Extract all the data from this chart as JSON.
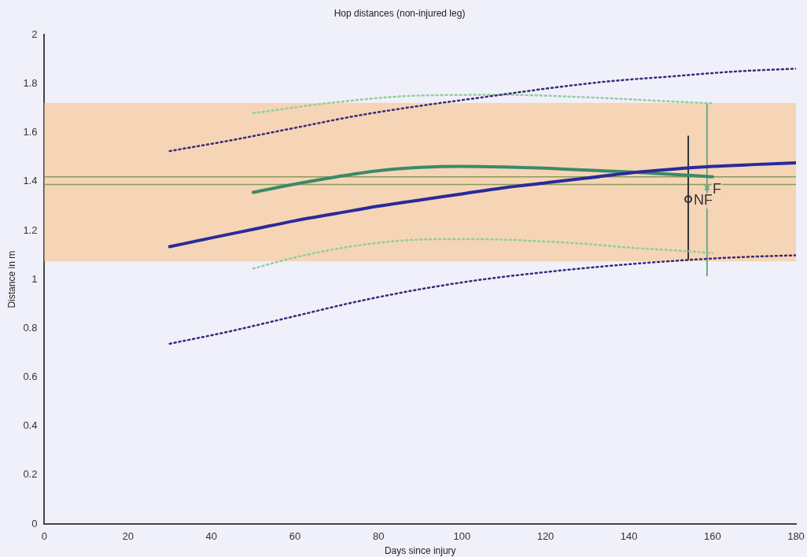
{
  "chart_data": {
    "type": "line",
    "title": "Hop distances (non-injured leg)",
    "xlabel": "Days since injury",
    "ylabel": "Distance in m",
    "xlim": [
      0,
      180
    ],
    "xticks": [
      0,
      20,
      40,
      60,
      80,
      100,
      120,
      140,
      160,
      180
    ],
    "ylim": [
      0,
      2
    ],
    "yticks": [
      0,
      0.2,
      0.4,
      0.6,
      0.8,
      1,
      1.2,
      1.4,
      1.6,
      1.8,
      2
    ],
    "grid": false,
    "legend": false,
    "bands": [
      {
        "axis": "y",
        "from": 1.074,
        "to": 1.722,
        "color": "#f5d5b5"
      }
    ],
    "ref_lines": [
      {
        "axis": "y",
        "value": 1.42,
        "color": "#8a9a5b"
      },
      {
        "axis": "y",
        "value": 1.388,
        "color": "#8a9a5b"
      }
    ],
    "series": [
      {
        "color": "#2a2a9a",
        "line_style": "solid",
        "marker": "none",
        "x": [
          30,
          40,
          50,
          60,
          70,
          80,
          90,
          100,
          110,
          120,
          130,
          140,
          150,
          160,
          170,
          180
        ],
        "values": [
          1.134,
          1.17,
          1.205,
          1.24,
          1.27,
          1.3,
          1.325,
          1.35,
          1.375,
          1.395,
          1.415,
          1.435,
          1.45,
          1.462,
          1.47,
          1.477
        ]
      },
      {
        "color": "#3a2a7a",
        "line_style": "dotted",
        "marker": "none",
        "x": [
          30,
          45,
          60,
          75,
          90,
          105,
          120,
          135,
          150,
          165,
          180
        ],
        "values": [
          1.525,
          1.57,
          1.62,
          1.67,
          1.71,
          1.745,
          1.78,
          1.81,
          1.83,
          1.85,
          1.862
        ]
      },
      {
        "color": "#3a2a7a",
        "line_style": "dotted",
        "marker": "none",
        "x": [
          30,
          45,
          60,
          75,
          90,
          105,
          120,
          135,
          150,
          165,
          180
        ],
        "values": [
          0.737,
          0.79,
          0.85,
          0.91,
          0.96,
          1.0,
          1.03,
          1.055,
          1.075,
          1.09,
          1.099
        ]
      },
      {
        "color": "#3a8a6a",
        "line_style": "solid",
        "marker": "none",
        "x": [
          50,
          60,
          70,
          80,
          90,
          100,
          110,
          120,
          130,
          140,
          150,
          160
        ],
        "values": [
          1.356,
          1.39,
          1.42,
          1.445,
          1.458,
          1.462,
          1.46,
          1.455,
          1.447,
          1.44,
          1.43,
          1.42
        ]
      },
      {
        "color": "#8fcf9f",
        "line_style": "dotted",
        "marker": "none",
        "x": [
          50,
          70,
          90,
          110,
          130,
          150,
          160
        ],
        "values": [
          1.68,
          1.725,
          1.752,
          1.755,
          1.745,
          1.728,
          1.72
        ]
      },
      {
        "color": "#8fcf9f",
        "line_style": "dotted",
        "marker": "none",
        "x": [
          50,
          60,
          70,
          80,
          90,
          100,
          110,
          120,
          130,
          140,
          150,
          160
        ],
        "values": [
          1.045,
          1.09,
          1.125,
          1.15,
          1.163,
          1.165,
          1.163,
          1.155,
          1.145,
          1.13,
          1.12,
          1.108
        ]
      },
      {
        "type": "scatter",
        "color": "#333333",
        "marker": "circle",
        "x": [
          154.2
        ],
        "values": [
          1.328
        ],
        "errors": [
          [
            1.08,
            1.588
          ]
        ]
      },
      {
        "type": "scatter",
        "color": "#6aaa8a",
        "marker": "cross",
        "x": [
          158.7
        ],
        "values": [
          1.375
        ],
        "errors": [
          [
            1.013,
            1.72
          ]
        ]
      }
    ],
    "annotations": [
      {
        "text": "NF",
        "x": 154.2,
        "y": 1.328
      },
      {
        "text": "F",
        "x": 158.7,
        "y": 1.375
      }
    ]
  }
}
